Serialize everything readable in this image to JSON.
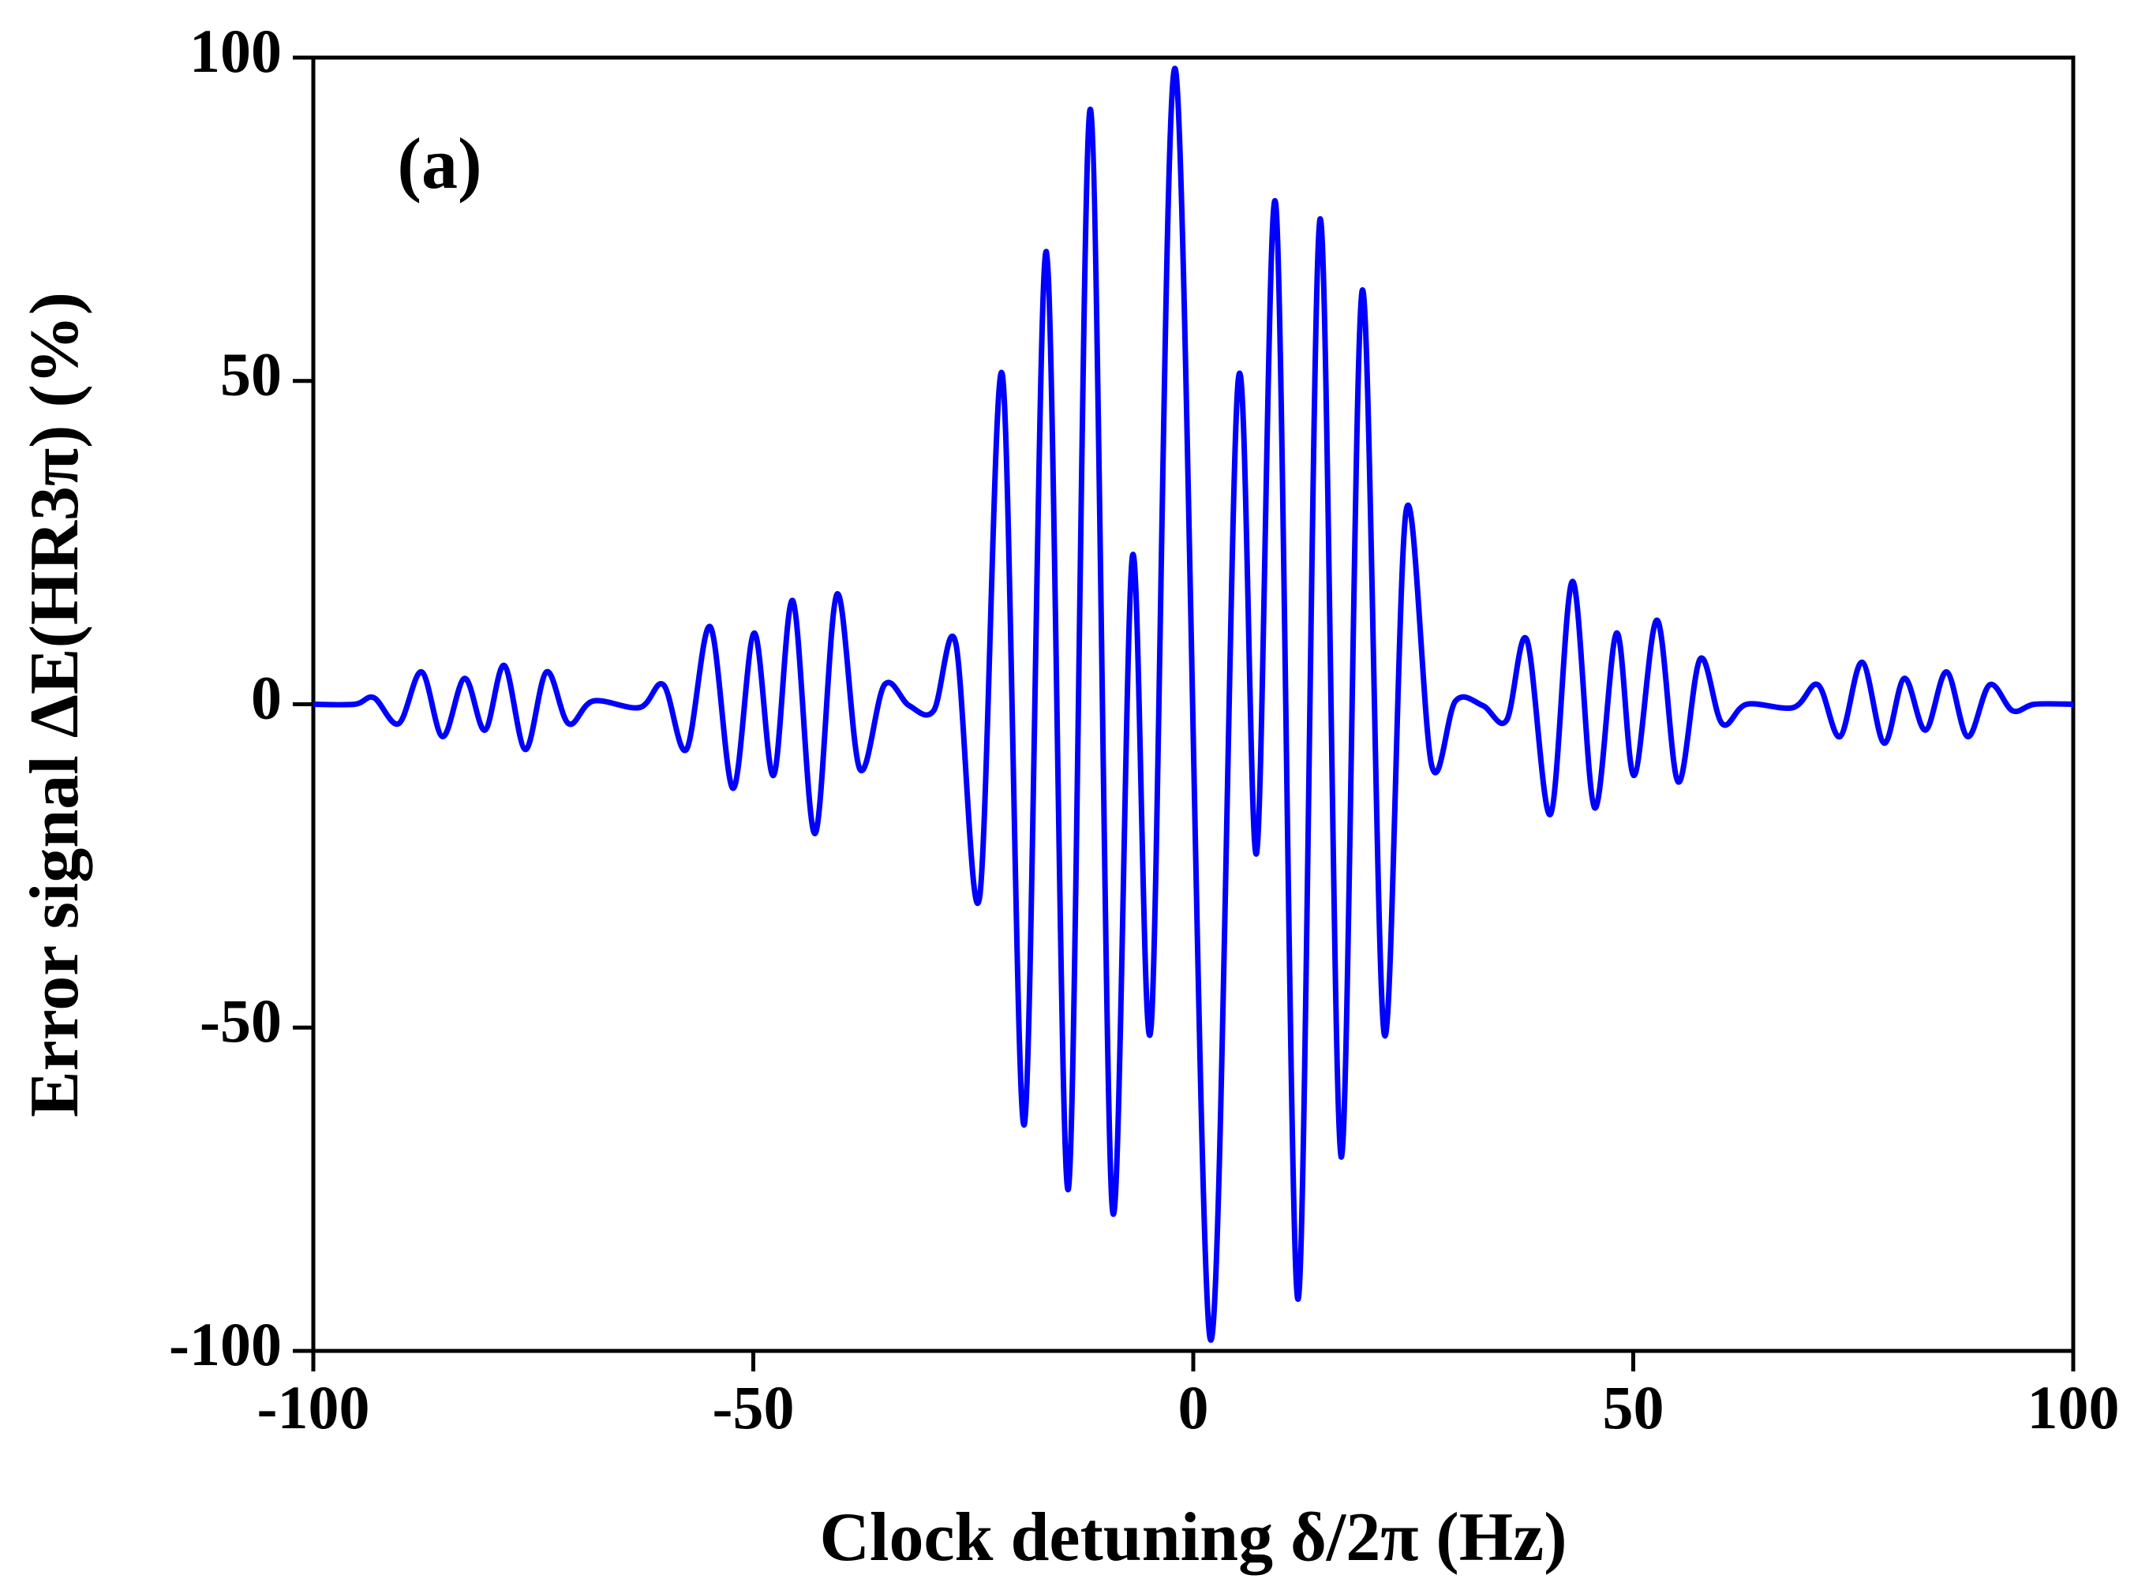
{
  "chart_data": {
    "type": "line",
    "annotation": "(a)",
    "x_label": "Clock detuning δ/2π (Hz)",
    "y_label": "Error signal ΔE(HR3π) (%)",
    "xlim": [
      -100,
      100
    ],
    "ylim": [
      -100,
      100
    ],
    "xticks": [
      -100,
      -50,
      0,
      50,
      100
    ],
    "yticks": [
      -100,
      -50,
      0,
      50,
      100
    ],
    "x": [
      -100,
      -95.3,
      -93.1,
      -90.3,
      -87.7,
      -85.3,
      -82.8,
      -80.5,
      -78.3,
      -75.9,
      -73.5,
      -71,
      -68.2,
      -62.9,
      -60.2,
      -57.6,
      -54.9,
      -52.3,
      -49.9,
      -47.7,
      -45.5,
      -43,
      -40.5,
      -37.9,
      -35.1,
      -32.3,
      -29.5,
      -27,
      -24.3,
      -21.7,
      -19.2,
      -16.7,
      -14.2,
      -11.7,
      -9.2,
      -6.9,
      -4.8,
      -2,
      1.9,
      5.1,
      7.2,
      9.4,
      11.9,
      14.4,
      16.8,
      19.2,
      21.7,
      24.2,
      27.1,
      29.8,
      32.9,
      35.6,
      37.9,
      40.6,
      43.1,
      45.6,
      48.1,
      50.1,
      52.7,
      55.1,
      57.6,
      60.1,
      62.9,
      68.2,
      71,
      73.5,
      76,
      78.5,
      80.8,
      83.2,
      85.6,
      88,
      90.5,
      93.1,
      95.6,
      100
    ],
    "series": [
      {
        "color": "#0000ff",
        "values": [
          0,
          0,
          1,
          -3,
          5,
          -5,
          4,
          -4,
          6,
          -7,
          5,
          -3,
          0.5,
          -0.5,
          3,
          -7,
          12,
          -13,
          11,
          -11,
          16,
          -20,
          17,
          -10,
          3,
          -0.2,
          -1,
          9.5,
          -30,
          51,
          -65,
          70,
          -75,
          92,
          -78,
          23,
          -50,
          98,
          -98,
          50,
          -23,
          77,
          -92,
          75,
          -70,
          64,
          -51,
          30,
          -9.5,
          0.5,
          -0.2,
          -2.5,
          10,
          -17,
          19,
          -16,
          11,
          -11,
          13,
          -12,
          7,
          -3,
          0,
          -0.5,
          3,
          -5,
          6.5,
          -6,
          4,
          -4,
          5,
          -5,
          3,
          -1,
          0,
          0
        ]
      }
    ]
  }
}
